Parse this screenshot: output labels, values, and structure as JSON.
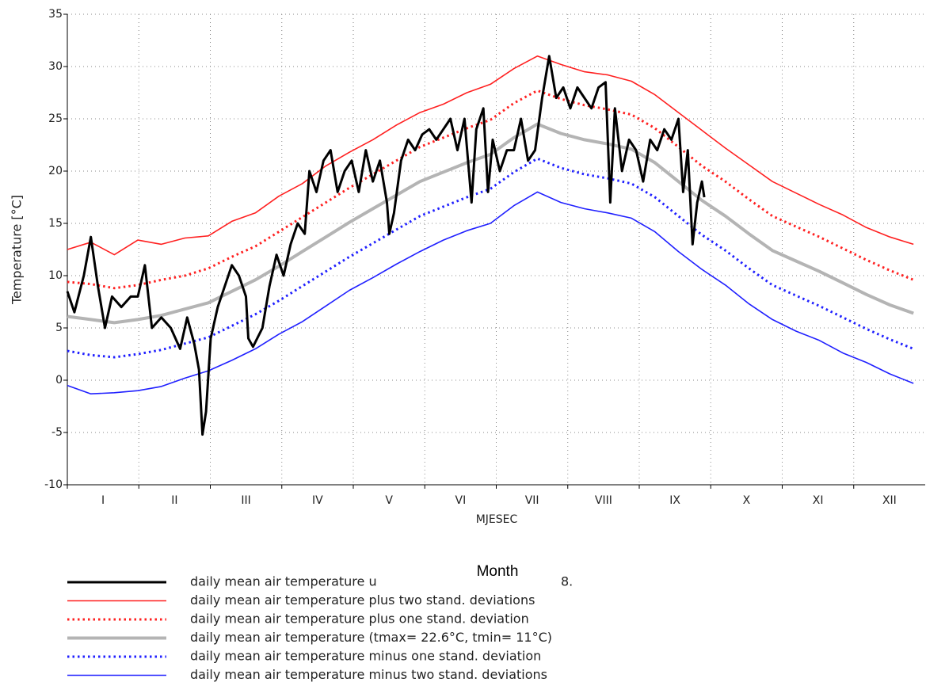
{
  "chart_data": {
    "type": "line",
    "y_label": "Temperature [°C]",
    "x_label": "MJESEC",
    "x_label_overlay": "Month",
    "legend_fragment": "8.",
    "months": [
      "I",
      "II",
      "III",
      "IV",
      "V",
      "VI",
      "VII",
      "VIII",
      "IX",
      "X",
      "XI",
      "XII"
    ],
    "xlim": [
      1,
      366
    ],
    "ylim": [
      -10,
      35
    ],
    "yticks": [
      -10,
      -5,
      0,
      5,
      10,
      15,
      20,
      25,
      30,
      35
    ],
    "grid": true,
    "x": [
      1,
      11,
      21,
      31,
      41,
      51,
      61,
      71,
      81,
      91,
      101,
      111,
      121,
      131,
      141,
      151,
      161,
      171,
      181,
      191,
      201,
      211,
      221,
      231,
      241,
      251,
      261,
      271,
      281,
      291,
      301,
      311,
      321,
      331,
      341,
      351,
      361
    ],
    "series": [
      {
        "name": "daily mean air temperature u",
        "color": "#000000",
        "width": 3,
        "dotted": false,
        "x": [
          1,
          4,
          8,
          11,
          14,
          17,
          20,
          24,
          28,
          31,
          34,
          37,
          41,
          45,
          49,
          52,
          55,
          57,
          58.5,
          60,
          62,
          65,
          68,
          71,
          74,
          77,
          78,
          80,
          84,
          87,
          90,
          93,
          96,
          99,
          102,
          104,
          107,
          110,
          113,
          116,
          119,
          122,
          125,
          128,
          131,
          134,
          137,
          138,
          140,
          143,
          146,
          149,
          152,
          155,
          158,
          161,
          164,
          167,
          170,
          173,
          175,
          178,
          180,
          182,
          185,
          188,
          191,
          194,
          197,
          200,
          203,
          206,
          209,
          212,
          215,
          218,
          221,
          224,
          227,
          230,
          232,
          234,
          237,
          240,
          243,
          246,
          249,
          252,
          255,
          258,
          261,
          263,
          265,
          267,
          269,
          271,
          272
        ],
        "values": [
          8.5,
          6.5,
          10,
          13.7,
          9,
          5,
          8,
          7,
          8,
          8,
          11,
          5,
          6,
          5,
          3,
          6,
          3.5,
          1,
          -5.2,
          -3,
          4,
          7,
          9,
          11,
          10,
          8,
          4,
          3.2,
          5,
          9,
          12,
          10,
          13,
          15,
          14,
          20,
          18,
          21,
          22,
          18,
          20,
          21,
          18,
          22,
          19,
          21,
          17,
          14,
          16,
          21,
          23,
          22,
          23.5,
          24,
          23,
          24,
          25,
          22,
          25,
          17,
          24,
          26,
          18,
          23,
          20,
          22,
          22,
          25,
          21,
          22,
          27,
          31,
          27,
          28,
          26,
          28,
          27,
          26,
          28,
          28.5,
          17,
          26,
          20,
          23,
          22,
          19,
          23,
          22,
          24,
          23,
          25,
          18,
          22,
          13,
          17,
          19,
          17.5
        ]
      },
      {
        "name": "daily mean air temperature plus two stand. deviations",
        "color": "#ff2020",
        "width": 1.6,
        "dotted": false,
        "values": [
          12.5,
          13.2,
          12.0,
          13.4,
          13.0,
          13.6,
          13.8,
          15.2,
          16.0,
          17.6,
          18.8,
          20.5,
          21.8,
          23.0,
          24.4,
          25.6,
          26.4,
          27.5,
          28.3,
          29.8,
          31.0,
          30.2,
          29.5,
          29.2,
          28.6,
          27.3,
          25.6,
          23.9,
          22.2,
          20.6,
          19.0,
          17.9,
          16.8,
          15.8,
          14.6,
          13.7,
          13.0
        ]
      },
      {
        "name": "daily mean air temperature plus one stand. deviation",
        "color": "#ff2020",
        "width": 3,
        "dotted": true,
        "values": [
          9.4,
          9.2,
          8.8,
          9.1,
          9.6,
          10.0,
          10.7,
          11.8,
          12.8,
          14.2,
          15.6,
          17.0,
          18.4,
          19.7,
          21.0,
          22.3,
          23.2,
          24.1,
          24.9,
          26.5,
          27.7,
          26.9,
          26.3,
          25.9,
          25.4,
          24.1,
          22.3,
          20.5,
          19.0,
          17.3,
          15.7,
          14.7,
          13.7,
          12.6,
          11.5,
          10.5,
          9.6
        ]
      },
      {
        "name": "daily mean air temperature (tmax= 22.6°C, tmin= 11°C)",
        "color": "#b4b4b4",
        "width": 4,
        "dotted": false,
        "values": [
          6.1,
          5.8,
          5.5,
          5.8,
          6.2,
          6.8,
          7.4,
          8.5,
          9.6,
          10.9,
          12.3,
          13.7,
          15.1,
          16.4,
          17.7,
          19.0,
          19.9,
          20.8,
          21.6,
          23.2,
          24.5,
          23.6,
          23.0,
          22.6,
          22.1,
          20.8,
          19.0,
          17.2,
          15.7,
          14.0,
          12.4,
          11.4,
          10.4,
          9.3,
          8.2,
          7.2,
          6.4
        ]
      },
      {
        "name": "daily mean air temperature minus one stand. deviation",
        "color": "#2020ff",
        "width": 3,
        "dotted": true,
        "values": [
          2.8,
          2.4,
          2.2,
          2.5,
          2.9,
          3.5,
          4.1,
          5.2,
          6.3,
          7.6,
          9.0,
          10.4,
          11.8,
          13.1,
          14.4,
          15.7,
          16.6,
          17.5,
          18.3,
          19.9,
          21.2,
          20.3,
          19.7,
          19.3,
          18.8,
          17.5,
          15.7,
          13.9,
          12.4,
          10.7,
          9.1,
          8.1,
          7.1,
          6.0,
          4.9,
          3.9,
          3.0
        ]
      },
      {
        "name": "daily mean air temperature minus two stand. deviations",
        "color": "#2020ff",
        "width": 1.6,
        "dotted": false,
        "values": [
          -0.5,
          -1.3,
          -1.2,
          -1.0,
          -0.6,
          0.2,
          0.9,
          1.9,
          3.0,
          4.4,
          5.6,
          7.1,
          8.6,
          9.8,
          11.1,
          12.3,
          13.4,
          14.3,
          15.0,
          16.7,
          18.0,
          17.0,
          16.4,
          16.0,
          15.5,
          14.2,
          12.3,
          10.6,
          9.1,
          7.3,
          5.8,
          4.7,
          3.8,
          2.6,
          1.7,
          0.6,
          -0.3
        ]
      }
    ]
  }
}
